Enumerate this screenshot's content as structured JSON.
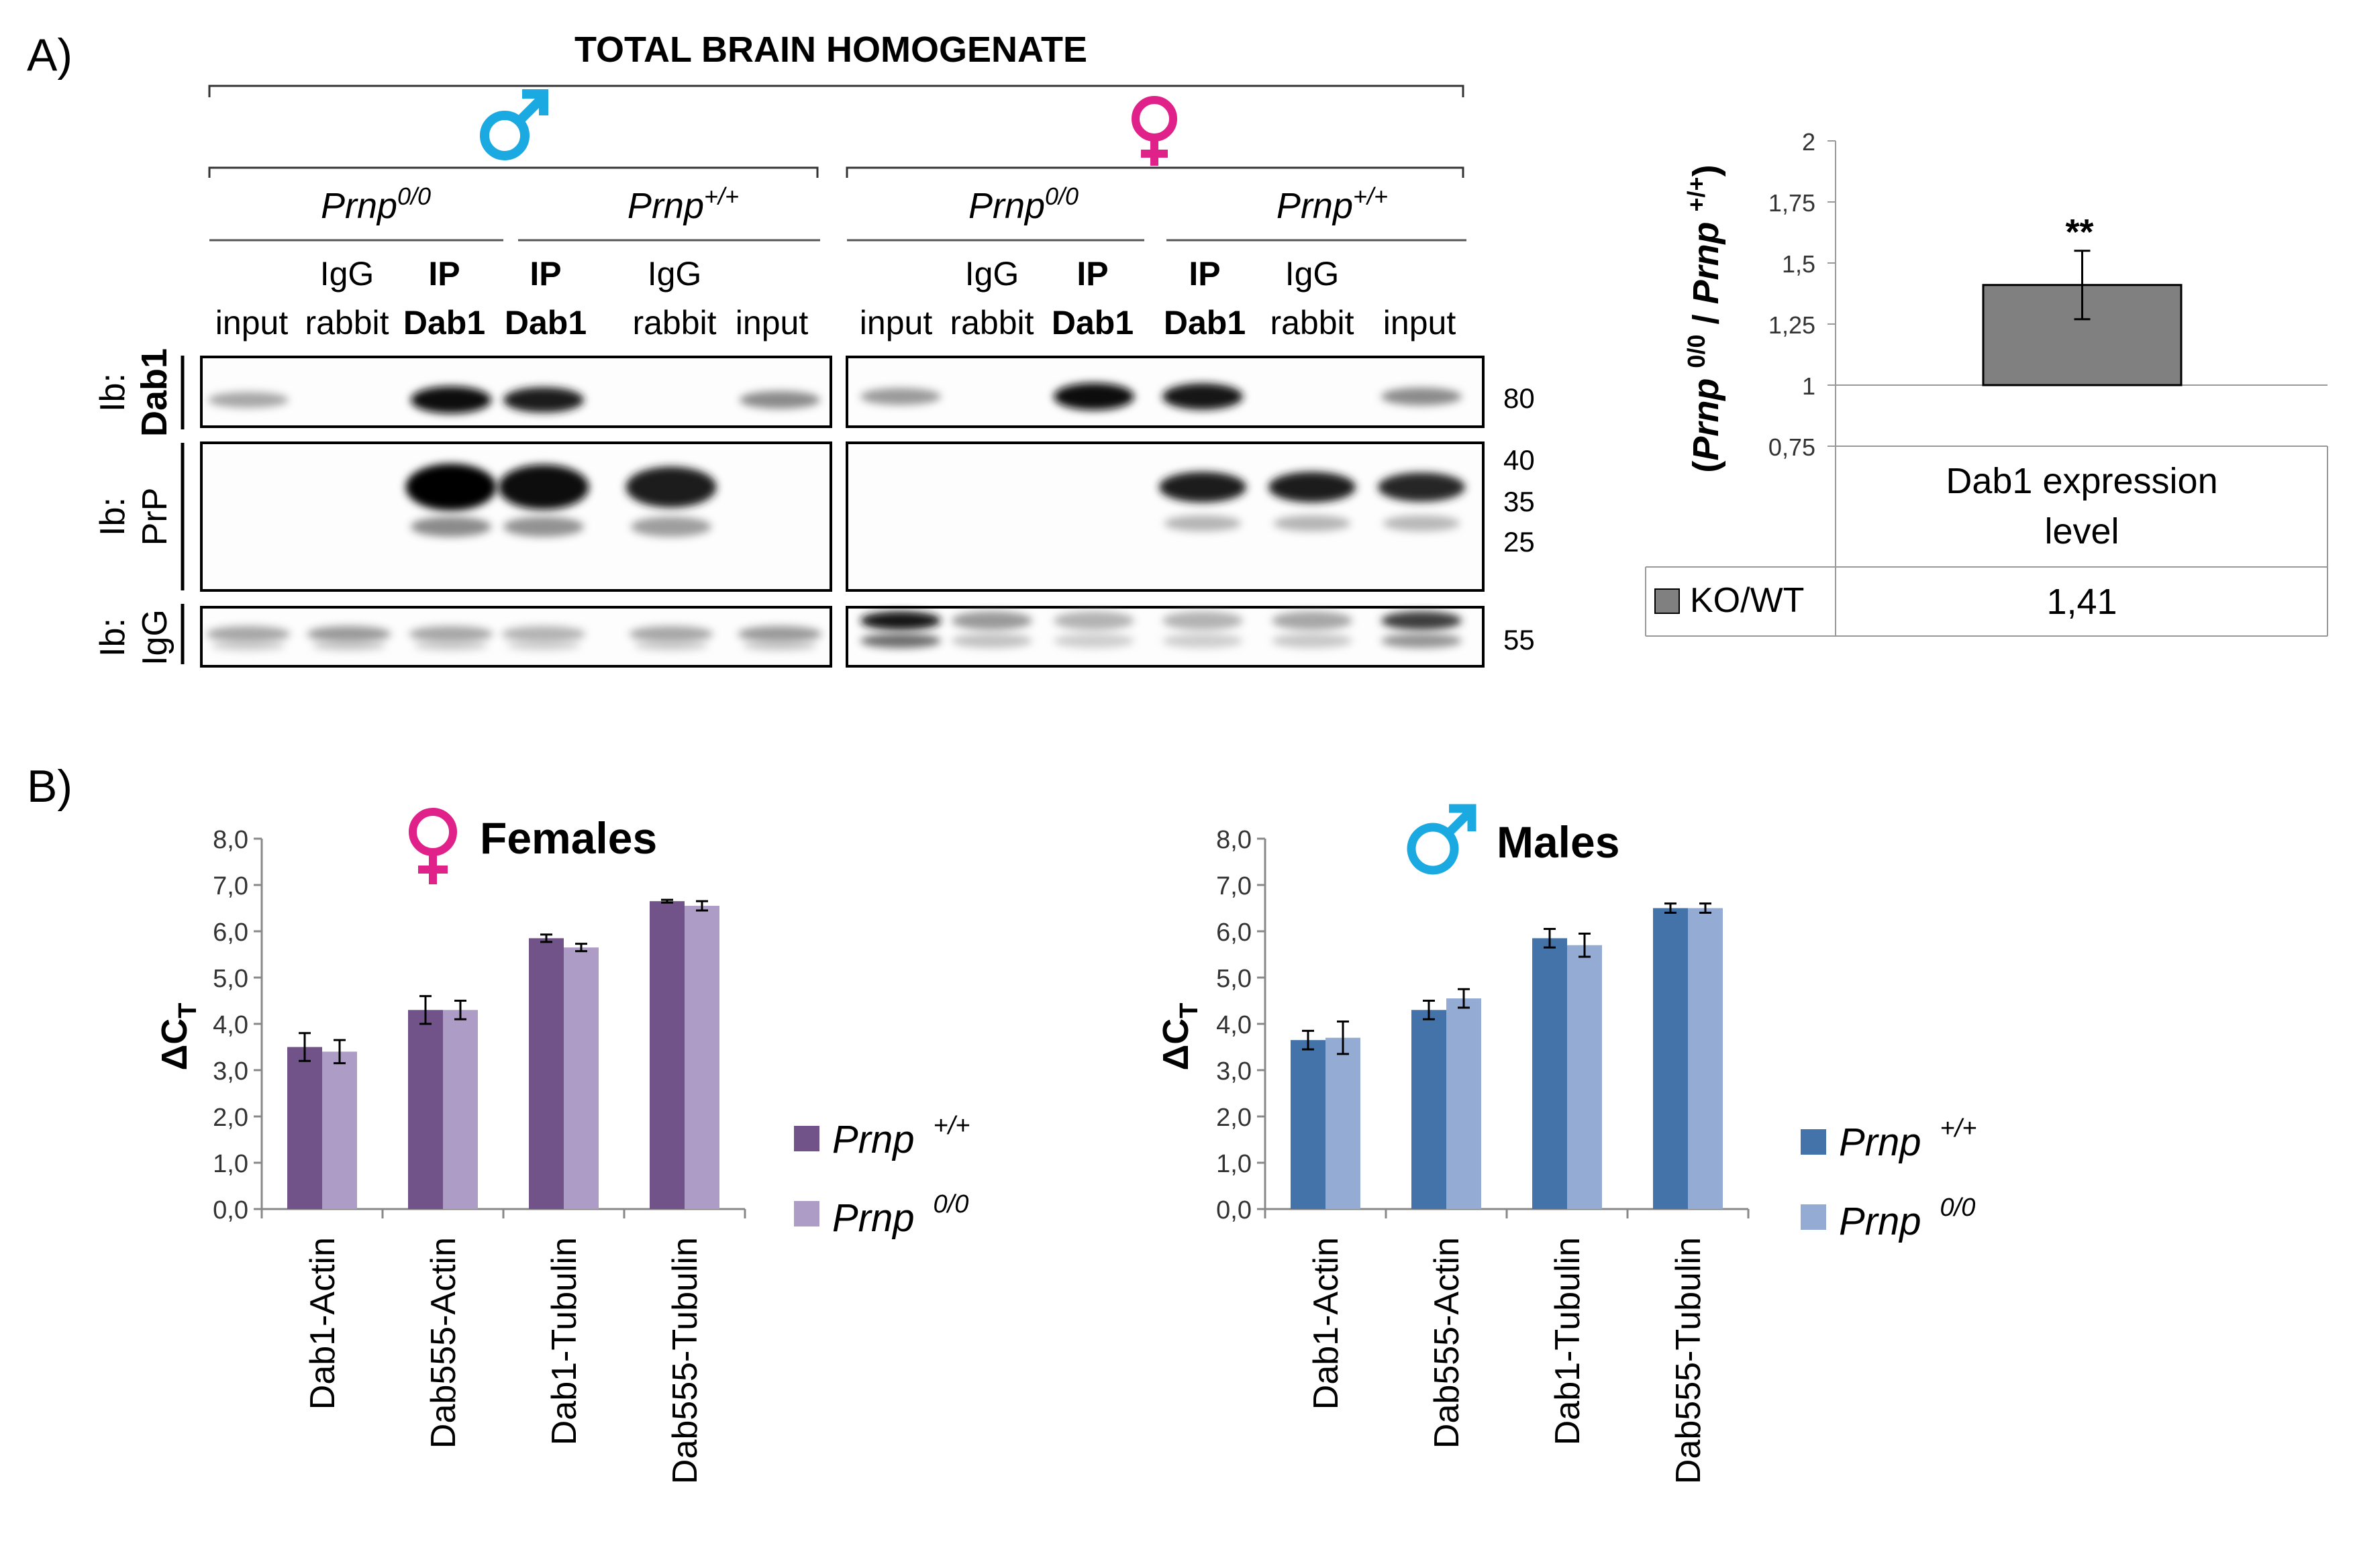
{
  "panel_a": {
    "label": "A)",
    "title": "TOTAL BRAIN HOMOGENATE",
    "groups": [
      {
        "sex": "male",
        "genotypes": [
          {
            "base": "Prnp",
            "sup": "0/0"
          },
          {
            "base": "Prnp",
            "sup": "+/+"
          }
        ]
      },
      {
        "sex": "female",
        "genotypes": [
          {
            "base": "Prnp",
            "sup": "0/0"
          },
          {
            "base": "Prnp",
            "sup": "+/+"
          }
        ]
      }
    ],
    "lanes_left": [
      {
        "line1": "",
        "line2": "input",
        "bold1": false,
        "bold2": false
      },
      {
        "line1": "IgG",
        "line2": "rabbit",
        "bold1": false,
        "bold2": false
      },
      {
        "line1": "IP",
        "line2": "Dab1",
        "bold1": true,
        "bold2": true
      },
      {
        "line1": "IP",
        "line2": "Dab1",
        "bold1": true,
        "bold2": true
      },
      {
        "line1": "IgG",
        "line2": "rabbit",
        "bold1": false,
        "bold2": false
      },
      {
        "line1": "",
        "line2": "input",
        "bold1": false,
        "bold2": false
      }
    ],
    "lanes_right": [
      {
        "line1": "",
        "line2": "input",
        "bold1": false,
        "bold2": false
      },
      {
        "line1": "IgG",
        "line2": "rabbit",
        "bold1": false,
        "bold2": false
      },
      {
        "line1": "IP",
        "line2": "Dab1",
        "bold1": true,
        "bold2": true
      },
      {
        "line1": "IP",
        "line2": "Dab1",
        "bold1": true,
        "bold2": true
      },
      {
        "line1": "IgG",
        "line2": "rabbit",
        "bold1": false,
        "bold2": false
      },
      {
        "line1": "",
        "line2": "input",
        "bold1": false,
        "bold2": false
      }
    ],
    "blots": [
      {
        "ib": "Ib:",
        "antibody": "Dab1",
        "antibody_bold": true,
        "markers": [
          "80"
        ]
      },
      {
        "ib": "Ib:",
        "antibody": "PrP",
        "antibody_bold": false,
        "markers": [
          "40",
          "35",
          "25"
        ]
      },
      {
        "ib": "Ib:",
        "antibody": "IgG",
        "antibody_bold": false,
        "markers": [
          "55"
        ]
      }
    ],
    "band_intensity": {
      "dab1_left": [
        0.35,
        0,
        0.95,
        0.85,
        0,
        0.45
      ],
      "dab1_right": [
        0.4,
        0,
        0.95,
        0.9,
        0,
        0.45
      ],
      "prp_left": [
        0,
        0,
        1.0,
        0.95,
        0.85,
        0
      ],
      "prp_right": [
        0,
        0,
        0,
        0.85,
        0.85,
        0.8
      ],
      "igg_left": [
        0.35,
        0.4,
        0.35,
        0.3,
        0.35,
        0.4
      ],
      "igg_right": [
        0.9,
        0.4,
        0.3,
        0.3,
        0.35,
        0.7
      ]
    }
  },
  "colors": {
    "male_symbol": "#1aa9e0",
    "female_symbol": "#e0218a",
    "ratio_bar": "#808080",
    "female_wt": "#725389",
    "female_ko": "#ad9cc5",
    "male_wt": "#4373a8",
    "male_ko": "#94abd3"
  },
  "panel_b": {
    "label": "B)"
  },
  "chart_data": [
    {
      "type": "bar",
      "title": "",
      "ylabel": "(Prnp 0/0 / Prnp +/+)",
      "ylabel_parts": {
        "a": "Prnp",
        "a_sup": "0/0",
        "b": "Prnp",
        "b_sup": "+/+"
      },
      "ylim": [
        0.75,
        2
      ],
      "baseline": 1,
      "yticks": [
        "0,75",
        "1",
        "1,25",
        "1,5",
        "1,75",
        "2"
      ],
      "categories": [
        "Dab1 expression level"
      ],
      "category_lines": [
        "Dab1 expression",
        "level"
      ],
      "series": [
        {
          "name": "KO/WT",
          "values": [
            1.41
          ],
          "error": [
            0.14
          ]
        }
      ],
      "data_table": {
        "row_label": "KO/WT",
        "value_text": "1,41"
      },
      "annotation": "**"
    },
    {
      "type": "bar",
      "title": "Females",
      "ylabel": "ΔCT",
      "ylabel_main": "ΔC",
      "ylabel_sub": "T",
      "ylim": [
        0,
        8
      ],
      "yticks": [
        "0,0",
        "1,0",
        "2,0",
        "3,0",
        "4,0",
        "5,0",
        "6,0",
        "7,0",
        "8,0"
      ],
      "categories": [
        "Dab1-Actin",
        "Dab555-Actin",
        "Dab1-Tubulin",
        "Dab555-Tubulin"
      ],
      "series": [
        {
          "name": "Prnp +/+",
          "legend_base": "Prnp",
          "legend_sup": "+/+",
          "values": [
            3.5,
            4.3,
            5.85,
            6.65
          ],
          "error": [
            0.3,
            0.3,
            0.08,
            0.03
          ]
        },
        {
          "name": "Prnp 0/0",
          "legend_base": "Prnp",
          "legend_sup": "0/0",
          "values": [
            3.4,
            4.3,
            5.65,
            6.55
          ],
          "error": [
            0.25,
            0.2,
            0.08,
            0.1
          ]
        }
      ]
    },
    {
      "type": "bar",
      "title": "Males",
      "ylabel": "ΔCT",
      "ylabel_main": "ΔC",
      "ylabel_sub": "T",
      "ylim": [
        0,
        8
      ],
      "yticks": [
        "0,0",
        "1,0",
        "2,0",
        "3,0",
        "4,0",
        "5,0",
        "6,0",
        "7,0",
        "8,0"
      ],
      "categories": [
        "Dab1-Actin",
        "Dab555-Actin",
        "Dab1-Tubulin",
        "Dab555-Tubulin"
      ],
      "series": [
        {
          "name": "Prnp +/+",
          "legend_base": "Prnp",
          "legend_sup": "+/+",
          "values": [
            3.65,
            4.3,
            5.85,
            6.5
          ],
          "error": [
            0.2,
            0.2,
            0.2,
            0.1
          ]
        },
        {
          "name": "Prnp 0/0",
          "legend_base": "Prnp",
          "legend_sup": "0/0",
          "values": [
            3.7,
            4.55,
            5.7,
            6.5
          ],
          "error": [
            0.35,
            0.2,
            0.25,
            0.1
          ]
        }
      ]
    }
  ]
}
